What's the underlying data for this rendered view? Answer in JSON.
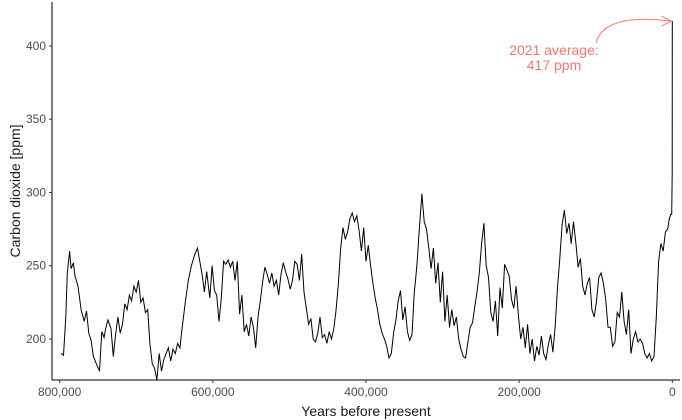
{
  "chart_data": {
    "type": "line",
    "xlabel": "Years before present",
    "ylabel": "Carbon dioxide [ppm]",
    "x_reversed": true,
    "xlim": [
      810000,
      -10000
    ],
    "ylim": [
      172,
      430
    ],
    "x_ticks": [
      800000,
      600000,
      400000,
      200000,
      0
    ],
    "x_tick_labels": [
      "800,000",
      "600,000",
      "400,000",
      "200,000",
      "0"
    ],
    "y_ticks": [
      200,
      250,
      300,
      350,
      400
    ],
    "y_tick_labels": [
      "200",
      "250",
      "300",
      "350",
      "400"
    ],
    "grid": false,
    "annotation": {
      "lines": [
        "2021 average:",
        "417 ppm"
      ],
      "color": "#f8766d",
      "points_to": {
        "x": 0,
        "y": 417
      }
    },
    "series": [
      {
        "color": "#000000",
        "x": [
          798000,
          795000,
          792000,
          790000,
          787000,
          785000,
          782000,
          780000,
          776000,
          772000,
          768000,
          765000,
          762000,
          759000,
          756000,
          752000,
          748000,
          745000,
          742000,
          740000,
          737000,
          733000,
          730000,
          727000,
          724000,
          721000,
          718000,
          715000,
          712000,
          709000,
          706000,
          703000,
          700000,
          697000,
          694000,
          691000,
          688000,
          685000,
          682000,
          679000,
          676000,
          673000,
          670000,
          667000,
          664000,
          661000,
          658000,
          655000,
          652000,
          649000,
          646000,
          643000,
          640000,
          636000,
          632000,
          628000,
          624000,
          620000,
          617000,
          614000,
          611000,
          608000,
          604000,
          601000,
          598000,
          595000,
          592000,
          589000,
          586000,
          583000,
          580000,
          577000,
          574000,
          571000,
          568000,
          565000,
          562000,
          559000,
          556000,
          553000,
          550000,
          547000,
          544000,
          541000,
          538000,
          535000,
          532000,
          529000,
          526000,
          523000,
          520000,
          517000,
          514000,
          511000,
          508000,
          505000,
          502000,
          499000,
          496000,
          493000,
          490000,
          487000,
          484000,
          481000,
          478000,
          475000,
          472000,
          469000,
          466000,
          463000,
          460000,
          457000,
          454000,
          451000,
          448000,
          445000,
          442000,
          439000,
          436000,
          433000,
          430000,
          427000,
          424000,
          421000,
          418000,
          415000,
          412000,
          409000,
          406000,
          403000,
          400000,
          397000,
          394000,
          391000,
          388000,
          385000,
          382000,
          379000,
          376000,
          373000,
          370000,
          367000,
          364000,
          361000,
          358000,
          355000,
          352000,
          349000,
          346000,
          343000,
          340000,
          337000,
          335000,
          333000,
          331000,
          329000,
          327000,
          324000,
          321000,
          318000,
          315000,
          312000,
          309000,
          306000,
          303000,
          300000,
          297000,
          294000,
          291000,
          288000,
          285000,
          282000,
          279000,
          276000,
          273000,
          270000,
          267000,
          264000,
          261000,
          258000,
          255000,
          252000,
          249000,
          246000,
          243000,
          240000,
          237000,
          234000,
          231000,
          228000,
          225000,
          222000,
          219000,
          216000,
          213000,
          210000,
          207000,
          204000,
          201000,
          198000,
          195000,
          192000,
          189000,
          186000,
          183000,
          180000,
          177000,
          174000,
          171000,
          168000,
          165000,
          162000,
          159000,
          156000,
          153000,
          150000,
          147000,
          144000,
          141000,
          138000,
          135000,
          132000,
          129000,
          126000,
          123000,
          120000,
          117000,
          114000,
          111000,
          108000,
          105000,
          102000,
          99000,
          96000,
          93000,
          90000,
          87000,
          84000,
          81000,
          78000,
          75000,
          72000,
          69000,
          66000,
          63000,
          60000,
          57000,
          54000,
          51000,
          48000,
          45000,
          42000,
          39000,
          36000,
          33000,
          30000,
          27000,
          24000,
          21000,
          18000,
          15000,
          12000,
          9000,
          6000,
          4000,
          2000,
          800,
          200,
          0
        ],
        "y": [
          190,
          189,
          215,
          245,
          260,
          248,
          252,
          243,
          236,
          220,
          212,
          219,
          204,
          199,
          188,
          183,
          178,
          205,
          201,
          207,
          213,
          207,
          188,
          203,
          215,
          204,
          210,
          224,
          220,
          230,
          226,
          236,
          232,
          240,
          225,
          228,
          218,
          220,
          196,
          183,
          180,
          172,
          190,
          178,
          186,
          190,
          194,
          185,
          193,
          190,
          197,
          194,
          208,
          225,
          240,
          250,
          257,
          262,
          253,
          244,
          232,
          246,
          228,
          250,
          233,
          230,
          212,
          228,
          253,
          251,
          254,
          249,
          253,
          240,
          253,
          217,
          230,
          205,
          210,
          202,
          215,
          208,
          194,
          215,
          226,
          239,
          249,
          244,
          238,
          245,
          236,
          240,
          230,
          244,
          252,
          246,
          241,
          234,
          240,
          253,
          251,
          240,
          258,
          232,
          221,
          210,
          214,
          200,
          198,
          204,
          215,
          201,
          203,
          197,
          205,
          200,
          207,
          220,
          238,
          262,
          276,
          268,
          273,
          282,
          286,
          280,
          284,
          274,
          260,
          276,
          253,
          264,
          250,
          238,
          228,
          220,
          210,
          204,
          200,
          195,
          187,
          190,
          204,
          213,
          226,
          233,
          213,
          222,
          205,
          199,
          203,
          231,
          242,
          254,
          270,
          285,
          299,
          280,
          275,
          262,
          248,
          262,
          238,
          252,
          225,
          246,
          212,
          230,
          208,
          220,
          209,
          215,
          200,
          193,
          188,
          187,
          198,
          208,
          211,
          222,
          232,
          245,
          265,
          279,
          250,
          242,
          218,
          212,
          226,
          202,
          235,
          221,
          251,
          247,
          243,
          227,
          221,
          236,
          216,
          200,
          208,
          194,
          210,
          190,
          200,
          185,
          195,
          189,
          202,
          190,
          186,
          196,
          203,
          191,
          209,
          235,
          255,
          278,
          288,
          272,
          279,
          265,
          280,
          266,
          249,
          255,
          236,
          230,
          238,
          242,
          220,
          215,
          226,
          242,
          245,
          238,
          227,
          208,
          208,
          195,
          198,
          218,
          215,
          232,
          212,
          203,
          220,
          190,
          200,
          205,
          198,
          200,
          197,
          190,
          187,
          190,
          185,
          188,
          215,
          253,
          265,
          260,
          273,
          275,
          282,
          285,
          285,
          313,
          417
        ]
      }
    ]
  }
}
